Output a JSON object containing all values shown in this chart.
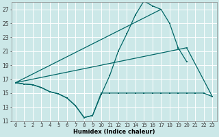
{
  "xlabel": "Humidex (Indice chaleur)",
  "bg_color": "#cce8e8",
  "grid_color": "#ffffff",
  "line_color": "#006666",
  "xlim": [
    -0.5,
    23.5
  ],
  "ylim": [
    11,
    28
  ],
  "yticks": [
    11,
    13,
    15,
    17,
    19,
    21,
    23,
    25,
    27
  ],
  "xticks": [
    0,
    1,
    2,
    3,
    4,
    5,
    6,
    7,
    8,
    9,
    10,
    11,
    12,
    13,
    14,
    15,
    16,
    17,
    18,
    19,
    20,
    21,
    22,
    23
  ],
  "line1_x": [
    0,
    1,
    2,
    3,
    4,
    5,
    6,
    7,
    8,
    9,
    10,
    11,
    12,
    13,
    14,
    15,
    16,
    17,
    18,
    19,
    20
  ],
  "line1_y": [
    16.5,
    16.3,
    16.2,
    15.8,
    15.2,
    14.9,
    14.3,
    13.2,
    11.5,
    11.8,
    14.8,
    17.5,
    21.0,
    23.5,
    26.2,
    28.2,
    27.5,
    27.0,
    25.0,
    21.5,
    19.5
  ],
  "line2_x": [
    0,
    1,
    2,
    3,
    4,
    5,
    6,
    7,
    8,
    9,
    10,
    11,
    12,
    13,
    14,
    15,
    16,
    17,
    18,
    19,
    20,
    21,
    22,
    23
  ],
  "line2_y": [
    16.5,
    16.3,
    16.2,
    15.8,
    15.2,
    14.9,
    14.3,
    13.2,
    11.5,
    11.8,
    15.0,
    15.0,
    15.0,
    15.0,
    15.0,
    15.0,
    15.0,
    15.0,
    15.0,
    15.0,
    15.0,
    15.0,
    15.0,
    14.5
  ],
  "line3_x": [
    0,
    17
  ],
  "line3_y": [
    16.5,
    27.0
  ],
  "line4_x": [
    0,
    20,
    23
  ],
  "line4_y": [
    16.5,
    21.5,
    14.5
  ]
}
